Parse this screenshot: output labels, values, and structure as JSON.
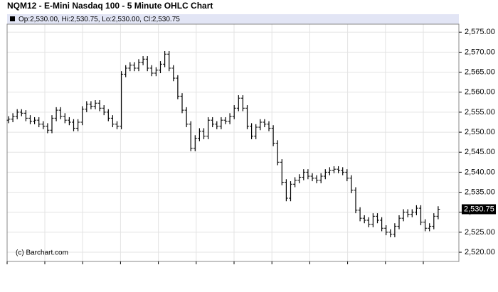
{
  "chart_data": {
    "type": "ohlc",
    "title": "NQM12 - E-Mini Nasdaq 100 - 5 Minute OHLC Chart",
    "info": "Op:2,530.00, Hi:2,530.75, Lo:2,530.00, Cl:2,530.75",
    "credit": "(c) Barchart.com",
    "color": "#000000",
    "grid": true,
    "ylim": [
      2517.7,
      2577
    ],
    "yticks": [
      {
        "value": 2520,
        "label": "2,520.00"
      },
      {
        "value": 2525,
        "label": "2,525.00"
      },
      {
        "value": 2530,
        "label": "2,530.00"
      },
      {
        "value": 2535,
        "label": "2,535.00"
      },
      {
        "value": 2540,
        "label": "2,540.00"
      },
      {
        "value": 2545,
        "label": "2,545.00"
      },
      {
        "value": 2550,
        "label": "2,550.00"
      },
      {
        "value": 2555,
        "label": "2,555.00"
      },
      {
        "value": 2560,
        "label": "2,560.00"
      },
      {
        "value": 2565,
        "label": "2,565.00"
      },
      {
        "value": 2570,
        "label": "2,570.00"
      },
      {
        "value": 2575,
        "label": "2,575.00"
      }
    ],
    "last_price": {
      "value": 2530.75,
      "label": "2,530.75"
    },
    "open": [
      2553,
      2553.25,
      2554,
      2555,
      2554.75,
      2553.5,
      2552.75,
      2553,
      2552,
      2551.5,
      2550.5,
      2553.5,
      2555.5,
      2554,
      2553,
      2552.5,
      2551,
      2552.5,
      2555.75,
      2557,
      2556.5,
      2557.25,
      2556,
      2555,
      2553.5,
      2552,
      2551.5,
      2564.5,
      2566,
      2566.75,
      2566,
      2567.5,
      2568.25,
      2566,
      2564.75,
      2565.5,
      2567,
      2569.5,
      2566,
      2563.5,
      2559,
      2555.5,
      2552,
      2546,
      2548.5,
      2550.25,
      2549,
      2553,
      2552,
      2551.5,
      2553,
      2552.75,
      2554,
      2556,
      2558.5,
      2556,
      2551.5,
      2549,
      2551.25,
      2552.5,
      2552,
      2551,
      2547.25,
      2542.5,
      2537.5,
      2533.5,
      2537,
      2538,
      2538.75,
      2540,
      2539,
      2538.5,
      2538,
      2539,
      2540,
      2540.5,
      2540.75,
      2540.5,
      2540,
      2538.5,
      2535.5,
      2530.5,
      2528.5,
      2528,
      2527,
      2529,
      2528,
      2526,
      2525,
      2524.5,
      2526.5,
      2528.5,
      2530,
      2529.5,
      2530,
      2531,
      2527.5,
      2526,
      2526.5,
      2529
    ],
    "high": [
      2554,
      2554.75,
      2555.75,
      2555.75,
      2555.5,
      2554.25,
      2553.75,
      2553.75,
      2552.75,
      2552.25,
      2554.25,
      2556.25,
      2556.25,
      2554.75,
      2553.75,
      2553.25,
      2553.25,
      2556.5,
      2557.75,
      2557.75,
      2558,
      2558,
      2556.75,
      2555.75,
      2554.25,
      2552.75,
      2565.25,
      2566.75,
      2567.5,
      2567.5,
      2568.25,
      2569,
      2569,
      2566.75,
      2566.25,
      2567.75,
      2570.25,
      2570.25,
      2566.75,
      2564.25,
      2559.75,
      2556.25,
      2552.75,
      2549.25,
      2551,
      2551,
      2553.75,
      2553.75,
      2552.75,
      2553.75,
      2553.75,
      2554.75,
      2556.75,
      2559.25,
      2559.25,
      2556.75,
      2552.25,
      2552,
      2553.25,
      2553.25,
      2552.75,
      2551.75,
      2548,
      2543.25,
      2538.25,
      2537.75,
      2538.75,
      2539.5,
      2540.75,
      2540.75,
      2539.75,
      2539.25,
      2539.75,
      2540.75,
      2541.25,
      2541.5,
      2541.5,
      2541.25,
      2540.75,
      2539.25,
      2536.25,
      2531.25,
      2529.25,
      2528.75,
      2529.75,
      2529.75,
      2528.75,
      2526.75,
      2525.75,
      2527.25,
      2529.25,
      2530.75,
      2530.75,
      2530.75,
      2531.75,
      2531.75,
      2528.25,
      2527.25,
      2529.75,
      2531.5
    ],
    "low": [
      2552.25,
      2552.5,
      2553.25,
      2554,
      2552.75,
      2552,
      2552,
      2551.25,
      2550.75,
      2549.75,
      2549.75,
      2552.75,
      2553.25,
      2552.25,
      2551.75,
      2550.25,
      2550.25,
      2551.75,
      2555,
      2555.75,
      2555.75,
      2555.25,
      2554.25,
      2552.75,
      2551.25,
      2550.75,
      2550.75,
      2563.75,
      2565.25,
      2565.25,
      2565.25,
      2566.75,
      2565.25,
      2564,
      2564,
      2564.75,
      2566.25,
      2565.25,
      2562.75,
      2558.25,
      2554.75,
      2551.25,
      2545.25,
      2545.25,
      2547.75,
      2548.25,
      2548.25,
      2551.25,
      2550.75,
      2550.75,
      2552,
      2552,
      2553.25,
      2555.25,
      2555.25,
      2550.75,
      2548.25,
      2548.25,
      2550.5,
      2551.25,
      2550.25,
      2546.5,
      2541.75,
      2536.75,
      2532.75,
      2532.75,
      2536.25,
      2537.25,
      2538,
      2538.25,
      2537.75,
      2537.25,
      2537.25,
      2538.25,
      2539.25,
      2539.75,
      2539.75,
      2539.25,
      2537.75,
      2534.75,
      2529.75,
      2527.75,
      2527.25,
      2526.25,
      2526.25,
      2527.25,
      2525.25,
      2524.25,
      2523.75,
      2523.75,
      2525.75,
      2527.75,
      2528.75,
      2528.75,
      2529.25,
      2526.75,
      2525.25,
      2525.25,
      2525.75,
      2528.25
    ],
    "close": [
      2553.25,
      2554,
      2555,
      2554.75,
      2553.5,
      2552.75,
      2553,
      2552,
      2551.5,
      2550.5,
      2553.5,
      2555.5,
      2554,
      2553,
      2552.5,
      2551,
      2552.5,
      2555.75,
      2557,
      2556.5,
      2557.25,
      2556,
      2555,
      2553.5,
      2552,
      2551.5,
      2564.5,
      2566,
      2566.75,
      2566,
      2567.5,
      2568.25,
      2566,
      2564.75,
      2565.5,
      2567,
      2569.5,
      2566,
      2563.5,
      2559,
      2555.5,
      2552,
      2546,
      2548.5,
      2550.25,
      2549,
      2553,
      2552,
      2551.5,
      2553,
      2552.75,
      2554,
      2556,
      2558.5,
      2556,
      2551.5,
      2549,
      2551.25,
      2552.5,
      2552,
      2551,
      2547.25,
      2542.5,
      2537.5,
      2533.5,
      2537,
      2538,
      2538.75,
      2540,
      2539,
      2538.5,
      2538,
      2539,
      2540,
      2540.5,
      2540.75,
      2540.5,
      2540,
      2538.5,
      2535.5,
      2530.5,
      2528.5,
      2528,
      2527,
      2529,
      2528,
      2526,
      2525,
      2524.5,
      2526.5,
      2528.5,
      2530,
      2529.5,
      2530,
      2531,
      2527.5,
      2526,
      2526.5,
      2529,
      2530.75
    ]
  }
}
